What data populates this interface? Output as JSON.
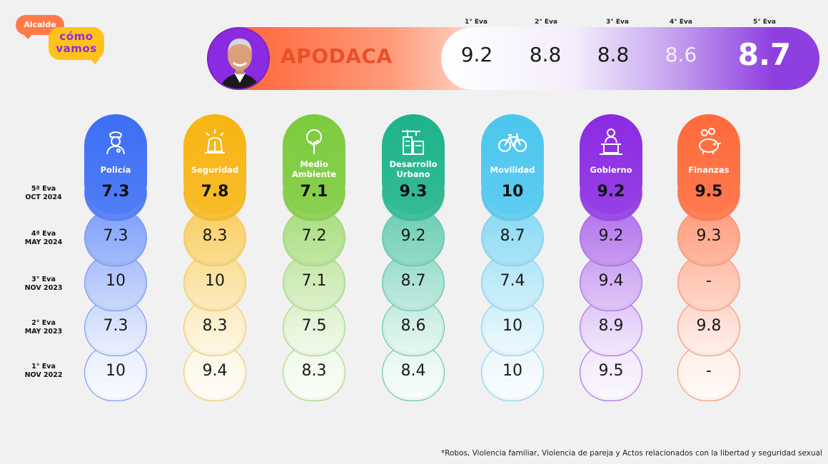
{
  "logo": {
    "line_top": "Alcalde",
    "line1": "cómo",
    "line2": "vamos"
  },
  "header": {
    "city": "APODACA",
    "evals": [
      {
        "label": "1° Eva",
        "value": "9.2"
      },
      {
        "label": "2° Eva",
        "value": "8.8"
      },
      {
        "label": "3° Eva",
        "value": "8.8"
      },
      {
        "label": "4° Eva",
        "value": "8.6"
      },
      {
        "label": "5° Eva",
        "value": "8.7"
      }
    ]
  },
  "rows": [
    {
      "line1": "5ª Eva",
      "line2": "OCT 2024"
    },
    {
      "line1": "4ª Eva",
      "line2": "MAY 2024"
    },
    {
      "line1": "3° Eva",
      "line2": "NOV 2023"
    },
    {
      "line1": "2° Eva",
      "line2": "MAY 2023"
    },
    {
      "line1": "1° Eva",
      "line2": "NOV  2022"
    }
  ],
  "categories": [
    {
      "name1": "Policía",
      "name2": "",
      "icon": "police-icon",
      "color": "#3d6ff5",
      "values": [
        "7.3",
        "7.3",
        "10",
        "7.3",
        "10"
      ]
    },
    {
      "name1": "Seguridad",
      "name2": "",
      "icon": "siren-icon",
      "color": "#f7b512",
      "values": [
        "7.8",
        "8.3",
        "10",
        "8.3",
        "9.4"
      ]
    },
    {
      "name1": "Medio",
      "name2": "Ambiente",
      "icon": "tree-icon",
      "color": "#7ccb3d",
      "values": [
        "7.1",
        "7.2",
        "7.1",
        "7.5",
        "8.3"
      ]
    },
    {
      "name1": "Desarrollo",
      "name2": "Urbano",
      "icon": "buildings-icon",
      "color": "#1db38a",
      "values": [
        "9.3",
        "9.2",
        "8.7",
        "8.6",
        "8.4"
      ]
    },
    {
      "name1": "Movilidad",
      "name2": "",
      "icon": "bicycle-icon",
      "color": "#4cc6ee",
      "values": [
        "10",
        "8.7",
        "7.4",
        "10",
        "10"
      ]
    },
    {
      "name1": "Gobierno",
      "name2": "",
      "icon": "speaker-icon",
      "color": "#8a2be2",
      "values": [
        "9.2",
        "9.2",
        "9.4",
        "8.9",
        "9.5"
      ]
    },
    {
      "name1": "Finanzas",
      "name2": "",
      "icon": "piggy-bank-icon",
      "color": "#ff6a3a",
      "values": [
        "9.5",
        "9.3",
        "-",
        "9.8",
        "-"
      ]
    }
  ],
  "footnote": "*Robos, Violencia familiar, Violencia de pareja y Actos relacionados con la libertad y seguridad sexual"
}
